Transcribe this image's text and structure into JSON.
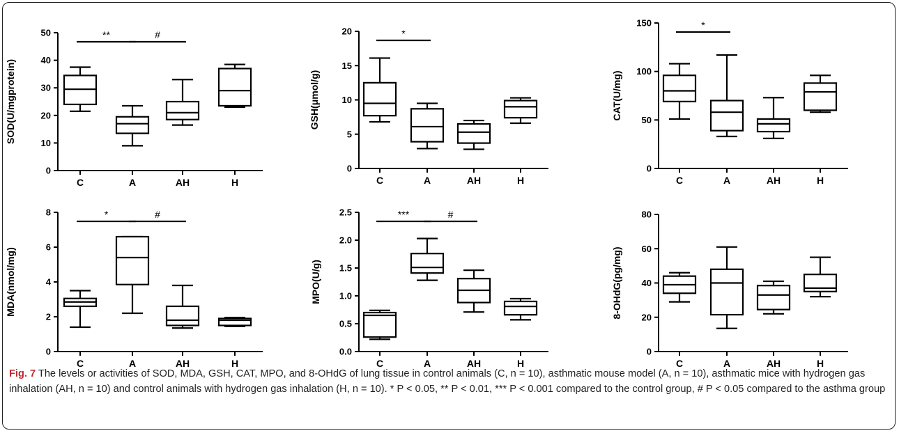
{
  "figure": {
    "label": "Fig. 7",
    "caption": " The levels or activities of SOD, MDA, GSH, CAT, MPO, and 8-OHdG of lung tissue in control animals (C, n = 10), asthmatic mouse model (A, n = 10), asthmatic mice with hydrogen gas inhalation (AH, n = 10) and control animals with hydrogen gas inhalation (H, n = 10). * P < 0.05, ** P < 0.01, *** P < 0.001 compared to the control group, # P < 0.05 compared to the asthma group"
  },
  "chart_data": [
    {
      "type": "boxplot",
      "ylabel": "SOD(U/mgprotein)",
      "categories": [
        "C",
        "A",
        "AH",
        "H"
      ],
      "ylim": [
        0,
        50
      ],
      "yticks": [
        "0",
        "10",
        "20",
        "30",
        "40",
        "50"
      ],
      "boxes": [
        {
          "min": 21.5,
          "q1": 24.0,
          "median": 29.5,
          "q3": 34.5,
          "max": 37.5
        },
        {
          "min": 9.0,
          "q1": 13.5,
          "median": 17.0,
          "q3": 19.5,
          "max": 23.5
        },
        {
          "min": 16.5,
          "q1": 18.5,
          "median": 21.0,
          "q3": 25.0,
          "max": 33.0
        },
        {
          "min": 23.0,
          "q1": 23.5,
          "median": 29.0,
          "q3": 37.0,
          "max": 38.5
        }
      ],
      "significance": [
        {
          "from": 0,
          "to": 1,
          "label": "**"
        },
        {
          "from": 1,
          "to": 2,
          "label": "#"
        }
      ]
    },
    {
      "type": "boxplot",
      "ylabel": "GSH(μmol/g)",
      "categories": [
        "C",
        "A",
        "AH",
        "H"
      ],
      "ylim": [
        0,
        20
      ],
      "yticks": [
        "0",
        "5",
        "10",
        "15",
        "20"
      ],
      "boxes": [
        {
          "min": 6.8,
          "q1": 7.7,
          "median": 9.5,
          "q3": 12.5,
          "max": 16.1
        },
        {
          "min": 2.9,
          "q1": 3.9,
          "median": 6.1,
          "q3": 8.7,
          "max": 9.5
        },
        {
          "min": 2.8,
          "q1": 3.7,
          "median": 5.3,
          "q3": 6.5,
          "max": 7.0
        },
        {
          "min": 6.6,
          "q1": 7.4,
          "median": 9.0,
          "q3": 9.9,
          "max": 10.3
        }
      ],
      "significance": [
        {
          "from": 0,
          "to": 1,
          "label": "*"
        }
      ]
    },
    {
      "type": "boxplot",
      "ylabel": "CAT(U/mg)",
      "categories": [
        "C",
        "A",
        "AH",
        "H"
      ],
      "ylim": [
        0,
        150
      ],
      "yticks": [
        "0",
        "50",
        "100",
        "150"
      ],
      "boxes": [
        {
          "min": 51,
          "q1": 69,
          "median": 80,
          "q3": 96,
          "max": 108
        },
        {
          "min": 33,
          "q1": 39,
          "median": 58,
          "q3": 70,
          "max": 117
        },
        {
          "min": 31,
          "q1": 38,
          "median": 46,
          "q3": 51,
          "max": 73
        },
        {
          "min": 58,
          "q1": 60,
          "median": 79,
          "q3": 88,
          "max": 96
        }
      ],
      "significance": [
        {
          "from": 0,
          "to": 1,
          "label": "*"
        }
      ]
    },
    {
      "type": "boxplot",
      "ylabel": "MDA(nmol/mg)",
      "categories": [
        "C",
        "A",
        "AH",
        "H"
      ],
      "ylim": [
        0,
        8
      ],
      "yticks": [
        "0",
        "2",
        "4",
        "6",
        "8"
      ],
      "boxes": [
        {
          "min": 1.4,
          "q1": 2.6,
          "median": 2.85,
          "q3": 3.05,
          "max": 3.5
        },
        {
          "min": 2.2,
          "q1": 3.85,
          "median": 5.4,
          "q3": 6.6,
          "max": 6.6
        },
        {
          "min": 1.35,
          "q1": 1.5,
          "median": 1.8,
          "q3": 2.6,
          "max": 3.8
        },
        {
          "min": 1.45,
          "q1": 1.5,
          "median": 1.8,
          "q3": 1.9,
          "max": 1.95
        }
      ],
      "significance": [
        {
          "from": 0,
          "to": 1,
          "label": "*"
        },
        {
          "from": 1,
          "to": 2,
          "label": "#"
        }
      ]
    },
    {
      "type": "boxplot",
      "ylabel": "MPO(U/g)",
      "categories": [
        "C",
        "A",
        "AH",
        "H"
      ],
      "ylim": [
        0,
        2.5
      ],
      "yticks": [
        "0.0",
        "0.5",
        "1.0",
        "1.5",
        "2.0",
        "2.5"
      ],
      "boxes": [
        {
          "min": 0.22,
          "q1": 0.26,
          "median": 0.65,
          "q3": 0.7,
          "max": 0.74
        },
        {
          "min": 1.28,
          "q1": 1.41,
          "median": 1.51,
          "q3": 1.76,
          "max": 2.03
        },
        {
          "min": 0.71,
          "q1": 0.88,
          "median": 1.1,
          "q3": 1.31,
          "max": 1.46
        },
        {
          "min": 0.57,
          "q1": 0.66,
          "median": 0.81,
          "q3": 0.9,
          "max": 0.95
        }
      ],
      "significance": [
        {
          "from": 0,
          "to": 1,
          "label": "***"
        },
        {
          "from": 1,
          "to": 2,
          "label": "#"
        }
      ]
    },
    {
      "type": "boxplot",
      "ylabel": "8-OHdG(pg/mg)",
      "categories": [
        "C",
        "A",
        "AH",
        "H"
      ],
      "ylim": [
        0,
        80
      ],
      "yticks": [
        "0",
        "20",
        "40",
        "60",
        "80"
      ],
      "boxes": [
        {
          "min": 29,
          "q1": 34,
          "median": 39,
          "q3": 44,
          "max": 46
        },
        {
          "min": 13.5,
          "q1": 21.5,
          "median": 40,
          "q3": 48,
          "max": 61
        },
        {
          "min": 22,
          "q1": 24.5,
          "median": 33,
          "q3": 38.5,
          "max": 41
        },
        {
          "min": 32,
          "q1": 35,
          "median": 37,
          "q3": 45,
          "max": 55
        }
      ],
      "significance": []
    }
  ]
}
